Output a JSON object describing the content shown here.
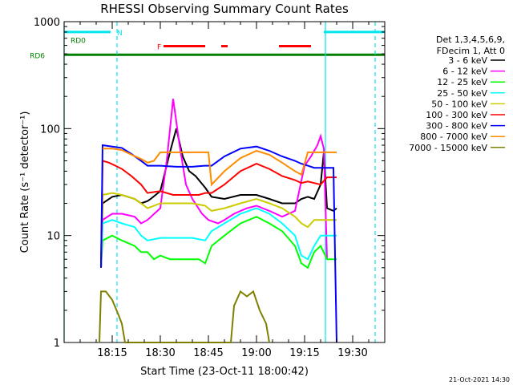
{
  "chart_data": {
    "type": "line",
    "title": "RHESSI Observing Summary Count Rates",
    "xlabel": "Start Time (23-Oct-11 18:00:42)",
    "ylabel": "Count Rate (s⁻¹ detector⁻¹)",
    "yscale": "log",
    "ylim": [
      1,
      1000
    ],
    "xlim_minutes": [
      0,
      100
    ],
    "x_ticks": [
      {
        "label": "18:15",
        "value": 15
      },
      {
        "label": "18:30",
        "value": 30
      },
      {
        "label": "18:45",
        "value": 45
      },
      {
        "label": "19:00",
        "value": 60
      },
      {
        "label": "19:15",
        "value": 75
      },
      {
        "label": "19:30",
        "value": 90
      }
    ],
    "y_ticks": [
      {
        "label": "1",
        "value": 1
      },
      {
        "label": "10",
        "value": 10
      },
      {
        "label": "100",
        "value": 100
      },
      {
        "label": "1000",
        "value": 1000
      }
    ],
    "legend_header": [
      "Det 1,3,4,5,6,9,",
      "FDecim 1, Att 0"
    ],
    "legend_position": "right",
    "footer_date": "21-Oct-2021 14:30",
    "flags": [
      {
        "label": "N",
        "color": "#00e5ee",
        "y": 800,
        "segments": [
          [
            0,
            14.5
          ],
          [
            81,
            100
          ]
        ],
        "label_x": 16.5
      },
      {
        "label": "F",
        "color": "#ff0000",
        "y": 590,
        "segments": [
          [
            31,
            44
          ],
          [
            49,
            51
          ],
          [
            67,
            77
          ]
        ],
        "label_x": 29
      },
      {
        "label": "RD0",
        "color": "#008000",
        "y": 590,
        "segments": [
          [
            0,
            0
          ]
        ],
        "label_x": 2
      },
      {
        "label": "RD6",
        "color": "#008000",
        "y": 490,
        "segments": [
          [
            0,
            26
          ],
          [
            26,
            45
          ],
          [
            45,
            73
          ],
          [
            73,
            100
          ]
        ],
        "label_x": -6
      }
    ],
    "vlines": [
      {
        "x": 0,
        "color": "#00e5ee",
        "style": "solid"
      },
      {
        "x": 16.5,
        "color": "#00e5ee",
        "style": "dashed"
      },
      {
        "x": 81.5,
        "color": "#00e5ee",
        "style": "solid"
      },
      {
        "x": 97,
        "color": "#00e5ee",
        "style": "dashed"
      }
    ],
    "series": [
      {
        "name": "3 - 6 keV",
        "color": "#000000",
        "points": [
          [
            11.5,
            5
          ],
          [
            12,
            20
          ],
          [
            15,
            23
          ],
          [
            18,
            24
          ],
          [
            22,
            22
          ],
          [
            24,
            20
          ],
          [
            26,
            21
          ],
          [
            27,
            22
          ],
          [
            30,
            26
          ],
          [
            33,
            60
          ],
          [
            35,
            100
          ],
          [
            37,
            55
          ],
          [
            39,
            40
          ],
          [
            41,
            36
          ],
          [
            44,
            28
          ],
          [
            46,
            23
          ],
          [
            50,
            22
          ],
          [
            55,
            24
          ],
          [
            60,
            24
          ],
          [
            64,
            22
          ],
          [
            68,
            20
          ],
          [
            72,
            20
          ],
          [
            74,
            22
          ],
          [
            76,
            23
          ],
          [
            78,
            22
          ],
          [
            80,
            30
          ],
          [
            81,
            60
          ],
          [
            82,
            18
          ],
          [
            84,
            17
          ],
          [
            85,
            18
          ]
        ]
      },
      {
        "name": "6 - 12 keV",
        "color": "#ff00ff",
        "points": [
          [
            11.5,
            5
          ],
          [
            12,
            14
          ],
          [
            15,
            16
          ],
          [
            18,
            16
          ],
          [
            22,
            15
          ],
          [
            24,
            13
          ],
          [
            26,
            14
          ],
          [
            30,
            18
          ],
          [
            32,
            50
          ],
          [
            34,
            190
          ],
          [
            36,
            70
          ],
          [
            38,
            30
          ],
          [
            40,
            22
          ],
          [
            43,
            16
          ],
          [
            45,
            14
          ],
          [
            48,
            13
          ],
          [
            50,
            14
          ],
          [
            53,
            16
          ],
          [
            57,
            18
          ],
          [
            60,
            19
          ],
          [
            64,
            17
          ],
          [
            68,
            15
          ],
          [
            72,
            17
          ],
          [
            75,
            45
          ],
          [
            77,
            55
          ],
          [
            79,
            70
          ],
          [
            80,
            85
          ],
          [
            81,
            65
          ],
          [
            82,
            6
          ]
        ]
      },
      {
        "name": "12 - 25 keV",
        "color": "#00ff00",
        "points": [
          [
            11.5,
            5
          ],
          [
            12,
            9
          ],
          [
            15,
            10
          ],
          [
            18,
            9
          ],
          [
            22,
            8
          ],
          [
            24,
            7
          ],
          [
            26,
            7
          ],
          [
            28,
            6
          ],
          [
            30,
            6.5
          ],
          [
            33,
            6
          ],
          [
            36,
            6
          ],
          [
            39,
            6
          ],
          [
            42,
            6
          ],
          [
            44,
            5.5
          ],
          [
            46,
            8
          ],
          [
            50,
            10
          ],
          [
            55,
            13
          ],
          [
            60,
            15
          ],
          [
            64,
            13
          ],
          [
            68,
            11
          ],
          [
            72,
            8
          ],
          [
            74,
            5.5
          ],
          [
            76,
            5
          ],
          [
            78,
            7
          ],
          [
            80,
            8
          ],
          [
            82,
            6
          ],
          [
            85,
            6
          ]
        ]
      },
      {
        "name": "25 - 50 keV",
        "color": "#00ffff",
        "points": [
          [
            11.5,
            5
          ],
          [
            12,
            13
          ],
          [
            15,
            14
          ],
          [
            18,
            13
          ],
          [
            22,
            12
          ],
          [
            24,
            10
          ],
          [
            26,
            9
          ],
          [
            30,
            9.5
          ],
          [
            35,
            9.5
          ],
          [
            40,
            9.5
          ],
          [
            44,
            9
          ],
          [
            46,
            11
          ],
          [
            50,
            13
          ],
          [
            55,
            16
          ],
          [
            60,
            18
          ],
          [
            64,
            16
          ],
          [
            68,
            13
          ],
          [
            72,
            10
          ],
          [
            74,
            6.5
          ],
          [
            76,
            6
          ],
          [
            78,
            8
          ],
          [
            80,
            10
          ],
          [
            82,
            10
          ],
          [
            85,
            10
          ]
        ]
      },
      {
        "name": "50 - 100 keV",
        "color": "#cccc00",
        "points": [
          [
            11.5,
            5
          ],
          [
            12,
            24
          ],
          [
            15,
            25
          ],
          [
            18,
            24
          ],
          [
            22,
            22
          ],
          [
            24,
            20
          ],
          [
            26,
            18
          ],
          [
            30,
            20
          ],
          [
            35,
            20
          ],
          [
            40,
            20
          ],
          [
            44,
            19
          ],
          [
            46,
            17
          ],
          [
            50,
            18
          ],
          [
            55,
            20
          ],
          [
            60,
            22
          ],
          [
            64,
            20
          ],
          [
            68,
            18
          ],
          [
            72,
            15
          ],
          [
            74,
            13
          ],
          [
            76,
            12
          ],
          [
            78,
            14
          ],
          [
            80,
            14
          ],
          [
            82,
            14
          ],
          [
            85,
            14
          ]
        ]
      },
      {
        "name": "100 - 300 keV",
        "color": "#ff0000",
        "points": [
          [
            11.5,
            5
          ],
          [
            12,
            50
          ],
          [
            14,
            48
          ],
          [
            16,
            45
          ],
          [
            18,
            42
          ],
          [
            21,
            36
          ],
          [
            24,
            30
          ],
          [
            26,
            25
          ],
          [
            30,
            26
          ],
          [
            34,
            24
          ],
          [
            38,
            24
          ],
          [
            42,
            24
          ],
          [
            44,
            25
          ],
          [
            46,
            25
          ],
          [
            50,
            30
          ],
          [
            55,
            40
          ],
          [
            60,
            47
          ],
          [
            64,
            42
          ],
          [
            68,
            36
          ],
          [
            72,
            33
          ],
          [
            74,
            31
          ],
          [
            76,
            32
          ],
          [
            78,
            31
          ],
          [
            80,
            30
          ],
          [
            82,
            35
          ],
          [
            85,
            35
          ]
        ]
      },
      {
        "name": "300 - 800 keV",
        "color": "#0000ff",
        "points": [
          [
            11.5,
            5
          ],
          [
            12,
            70
          ],
          [
            15,
            68
          ],
          [
            18,
            66
          ],
          [
            21,
            58
          ],
          [
            24,
            50
          ],
          [
            26,
            45
          ],
          [
            30,
            45
          ],
          [
            35,
            44
          ],
          [
            40,
            44
          ],
          [
            44,
            45
          ],
          [
            46,
            45
          ],
          [
            50,
            55
          ],
          [
            55,
            65
          ],
          [
            60,
            68
          ],
          [
            64,
            62
          ],
          [
            68,
            55
          ],
          [
            72,
            50
          ],
          [
            74,
            47
          ],
          [
            76,
            45
          ],
          [
            78,
            43
          ],
          [
            80,
            43
          ],
          [
            82,
            43
          ],
          [
            84,
            43
          ],
          [
            85,
            1
          ]
        ]
      },
      {
        "name": "800 - 7000 keV",
        "color": "#ff8c00",
        "points": [
          [
            12,
            65
          ],
          [
            15,
            65
          ],
          [
            18,
            63
          ],
          [
            21,
            57
          ],
          [
            24,
            52
          ],
          [
            26,
            48
          ],
          [
            28,
            50
          ],
          [
            30,
            60
          ],
          [
            34,
            60
          ],
          [
            38,
            60
          ],
          [
            42,
            60
          ],
          [
            44,
            60
          ],
          [
            45,
            60
          ],
          [
            46,
            30
          ],
          [
            50,
            40
          ],
          [
            55,
            53
          ],
          [
            60,
            62
          ],
          [
            64,
            57
          ],
          [
            68,
            48
          ],
          [
            72,
            40
          ],
          [
            74,
            37
          ],
          [
            76,
            60
          ],
          [
            78,
            60
          ],
          [
            80,
            60
          ],
          [
            82,
            60
          ],
          [
            85,
            60
          ]
        ]
      },
      {
        "name": "7000 - 15000 keV",
        "color": "#808000",
        "points": [
          [
            11,
            1
          ],
          [
            11.5,
            3
          ],
          [
            13,
            3
          ],
          [
            15,
            2.5
          ],
          [
            17,
            1.8
          ],
          [
            18,
            1.5
          ],
          [
            19,
            1
          ],
          [
            52,
            1
          ],
          [
            53,
            2.2
          ],
          [
            55,
            3
          ],
          [
            57,
            2.7
          ],
          [
            59,
            3
          ],
          [
            61,
            2
          ],
          [
            63,
            1.5
          ],
          [
            64,
            1
          ]
        ]
      }
    ]
  }
}
